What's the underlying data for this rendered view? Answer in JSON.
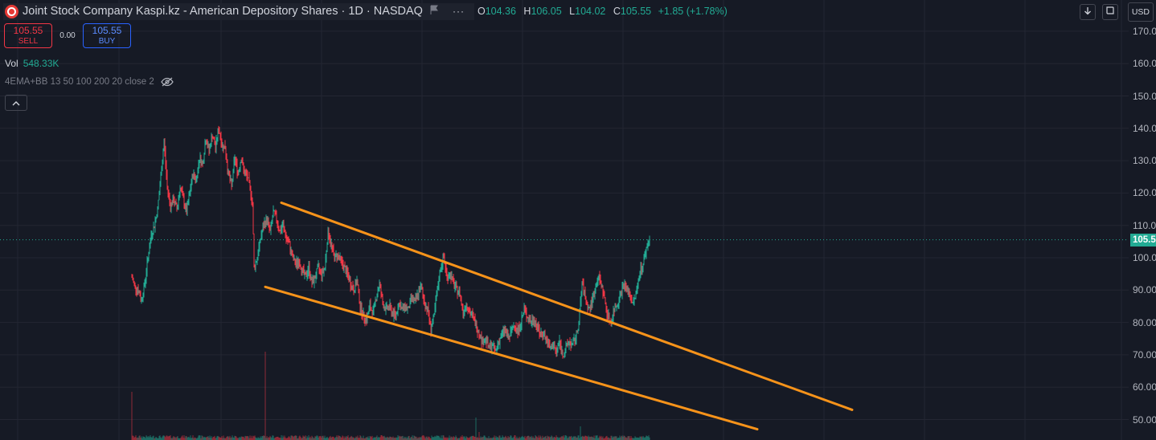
{
  "header": {
    "title": "Joint Stock Company Kaspi.kz - American Depository Shares",
    "interval": "1D",
    "exchange": "NASDAQ",
    "more_label": "···",
    "open_value": "104.36",
    "high_value": "106.05",
    "low_value": "104.02",
    "close_value": "105.55",
    "change": "+1.85 (+1.78%)",
    "open_key": "O",
    "high_key": "H",
    "low_key": "L",
    "close_key": "C"
  },
  "trading": {
    "sell_price": "105.55",
    "sell_label": "SELL",
    "spread": "0.00",
    "buy_price": "105.55",
    "buy_label": "BUY"
  },
  "volume": {
    "label": "Vol",
    "value": "548.33K"
  },
  "indicator": {
    "label": "4EMA+BB 13 50 100 200 20 close 2"
  },
  "currency": "USD",
  "price_axis": {
    "labels": [
      "170.00",
      "160.00",
      "150.00",
      "140.00",
      "130.00",
      "120.00",
      "110.00",
      "100.00",
      "90.00",
      "80.00",
      "70.00",
      "60.00",
      "50.00"
    ],
    "last_price": "105.55"
  },
  "colors": {
    "up": "#22ab94",
    "down": "#f23645",
    "trendline": "#f7931a",
    "background": "#161a25"
  },
  "chart_data": {
    "type": "candlestick",
    "ylim": [
      45,
      175
    ],
    "last_price": 105.55,
    "price_path": [
      [
        0,
        94
      ],
      [
        4,
        91
      ],
      [
        8,
        90
      ],
      [
        12,
        87
      ],
      [
        16,
        92
      ],
      [
        20,
        100
      ],
      [
        24,
        107
      ],
      [
        28,
        110
      ],
      [
        32,
        115
      ],
      [
        36,
        125
      ],
      [
        40,
        136
      ],
      [
        44,
        122
      ],
      [
        48,
        116
      ],
      [
        52,
        118
      ],
      [
        56,
        115
      ],
      [
        60,
        122
      ],
      [
        64,
        118
      ],
      [
        68,
        114
      ],
      [
        72,
        120
      ],
      [
        76,
        126
      ],
      [
        80,
        124
      ],
      [
        84,
        131
      ],
      [
        88,
        129
      ],
      [
        92,
        137
      ],
      [
        96,
        133
      ],
      [
        100,
        138
      ],
      [
        104,
        134
      ],
      [
        108,
        140
      ],
      [
        112,
        135
      ],
      [
        116,
        134
      ],
      [
        120,
        126
      ],
      [
        124,
        122
      ],
      [
        128,
        131
      ],
      [
        132,
        126
      ],
      [
        136,
        131
      ],
      [
        140,
        126
      ],
      [
        144,
        125
      ],
      [
        148,
        120
      ],
      [
        150,
        117
      ],
      [
        152,
        97
      ],
      [
        156,
        100
      ],
      [
        160,
        106
      ],
      [
        164,
        110
      ],
      [
        168,
        112
      ],
      [
        172,
        108
      ],
      [
        176,
        114
      ],
      [
        180,
        112
      ],
      [
        184,
        108
      ],
      [
        188,
        110
      ],
      [
        192,
        106
      ],
      [
        196,
        104
      ],
      [
        200,
        100
      ],
      [
        204,
        98
      ],
      [
        208,
        99
      ],
      [
        212,
        96
      ],
      [
        216,
        94
      ],
      [
        220,
        97
      ],
      [
        224,
        92
      ],
      [
        228,
        94
      ],
      [
        232,
        97
      ],
      [
        236,
        95
      ],
      [
        240,
        97
      ],
      [
        244,
        108
      ],
      [
        248,
        104
      ],
      [
        252,
        100
      ],
      [
        256,
        101
      ],
      [
        260,
        99
      ],
      [
        264,
        97
      ],
      [
        268,
        95
      ],
      [
        272,
        92
      ],
      [
        276,
        90
      ],
      [
        280,
        93
      ],
      [
        284,
        85
      ],
      [
        288,
        82
      ],
      [
        292,
        81
      ],
      [
        296,
        85
      ],
      [
        300,
        83
      ],
      [
        304,
        88
      ],
      [
        308,
        92
      ],
      [
        312,
        86
      ],
      [
        316,
        84
      ],
      [
        320,
        85
      ],
      [
        324,
        83
      ],
      [
        328,
        82
      ],
      [
        332,
        86
      ],
      [
        336,
        84
      ],
      [
        340,
        85
      ],
      [
        344,
        84
      ],
      [
        348,
        88
      ],
      [
        352,
        86
      ],
      [
        356,
        89
      ],
      [
        360,
        91
      ],
      [
        364,
        86
      ],
      [
        368,
        84
      ],
      [
        372,
        78
      ],
      [
        376,
        82
      ],
      [
        380,
        90
      ],
      [
        384,
        97
      ],
      [
        388,
        100
      ],
      [
        392,
        94
      ],
      [
        396,
        95
      ],
      [
        400,
        92
      ],
      [
        404,
        90
      ],
      [
        408,
        89
      ],
      [
        412,
        83
      ],
      [
        416,
        86
      ],
      [
        420,
        83
      ],
      [
        424,
        82
      ],
      [
        428,
        79
      ],
      [
        432,
        77
      ],
      [
        436,
        74
      ],
      [
        440,
        75
      ],
      [
        444,
        72
      ],
      [
        448,
        73
      ],
      [
        452,
        71
      ],
      [
        456,
        74
      ],
      [
        460,
        76
      ],
      [
        464,
        78
      ],
      [
        468,
        75
      ],
      [
        472,
        77
      ],
      [
        476,
        80
      ],
      [
        480,
        77
      ],
      [
        484,
        80
      ],
      [
        488,
        84
      ],
      [
        492,
        82
      ],
      [
        496,
        80
      ],
      [
        500,
        81
      ],
      [
        504,
        79
      ],
      [
        508,
        76
      ],
      [
        512,
        77
      ],
      [
        516,
        74
      ],
      [
        520,
        72
      ],
      [
        524,
        73
      ],
      [
        528,
        71
      ],
      [
        532,
        74
      ],
      [
        536,
        70
      ],
      [
        540,
        72
      ],
      [
        544,
        74
      ],
      [
        548,
        73
      ],
      [
        552,
        75
      ],
      [
        556,
        80
      ],
      [
        560,
        92
      ],
      [
        564,
        88
      ],
      [
        568,
        84
      ],
      [
        572,
        86
      ],
      [
        576,
        90
      ],
      [
        580,
        94
      ],
      [
        584,
        92
      ],
      [
        588,
        87
      ],
      [
        592,
        82
      ],
      [
        596,
        80
      ],
      [
        600,
        84
      ],
      [
        604,
        86
      ],
      [
        608,
        89
      ],
      [
        612,
        92
      ],
      [
        616,
        90
      ],
      [
        620,
        88
      ],
      [
        624,
        86
      ],
      [
        628,
        90
      ],
      [
        632,
        96
      ],
      [
        636,
        98
      ],
      [
        640,
        103
      ],
      [
        644,
        105.55
      ]
    ]
  },
  "drawings": [
    {
      "type": "trendline",
      "label": "upper",
      "p1": [
        186,
        117
      ],
      "p2": [
        896,
        53
      ]
    },
    {
      "type": "trendline",
      "label": "lower",
      "p1": [
        166,
        91
      ],
      "p2": [
        778,
        47
      ]
    }
  ]
}
